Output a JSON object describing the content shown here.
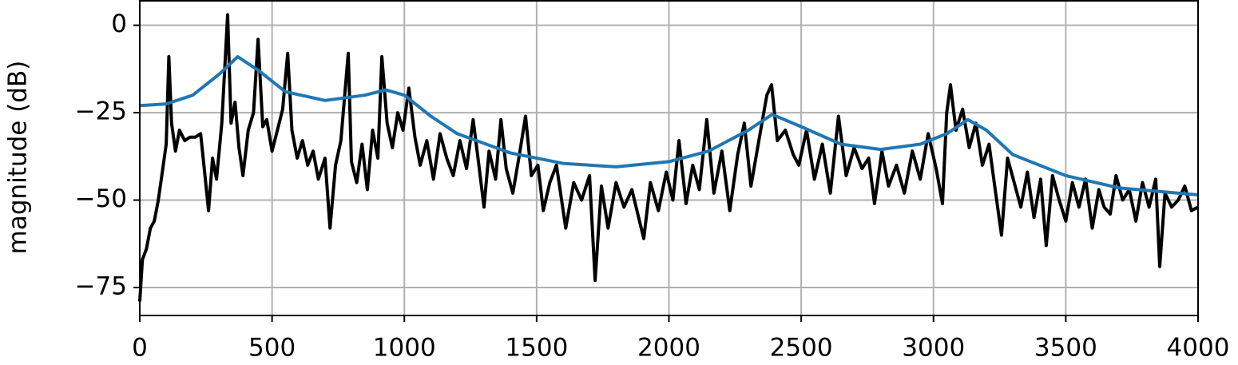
{
  "chart_data": {
    "type": "line",
    "ylabel": "magnitude (dB)",
    "xlim": [
      0,
      4000
    ],
    "ylim": [
      -83,
      7
    ],
    "xticks": [
      0,
      500,
      1000,
      1500,
      2000,
      2500,
      3000,
      3500,
      4000
    ],
    "yticks": [
      -75,
      -50,
      -25,
      0
    ],
    "tick_labels_minus": "−",
    "grid": true,
    "series": [
      {
        "color": "#000000",
        "x": [
          0,
          10,
          25,
          40,
          55,
          70,
          85,
          100,
          110,
          120,
          135,
          150,
          170,
          190,
          210,
          230,
          245,
          260,
          275,
          290,
          310,
          332,
          345,
          360,
          375,
          390,
          410,
          430,
          447,
          465,
          480,
          500,
          520,
          540,
          559,
          575,
          595,
          615,
          635,
          655,
          675,
          700,
          719,
          740,
          760,
          788,
          800,
          820,
          840,
          860,
          880,
          900,
          915,
          935,
          955,
          975,
          995,
          1017,
          1040,
          1060,
          1085,
          1110,
          1135,
          1160,
          1185,
          1210,
          1235,
          1260,
          1280,
          1301,
          1320,
          1345,
          1365,
          1385,
          1410,
          1435,
          1458,
          1480,
          1505,
          1525,
          1550,
          1575,
          1610,
          1640,
          1670,
          1700,
          1721,
          1745,
          1770,
          1800,
          1830,
          1860,
          1905,
          1930,
          1960,
          1990,
          2015,
          2038,
          2065,
          2090,
          2115,
          2143,
          2170,
          2200,
          2230,
          2260,
          2285,
          2310,
          2340,
          2370,
          2388,
          2410,
          2440,
          2470,
          2491,
          2520,
          2550,
          2580,
          2610,
          2641,
          2670,
          2700,
          2730,
          2755,
          2777,
          2805,
          2830,
          2860,
          2890,
          2920,
          2950,
          2980,
          3010,
          3034,
          3050,
          3064,
          3085,
          3110,
          3135,
          3160,
          3185,
          3210,
          3235,
          3257,
          3280,
          3305,
          3330,
          3355,
          3380,
          3405,
          3426,
          3450,
          3475,
          3500,
          3525,
          3550,
          3575,
          3600,
          3625,
          3645,
          3668,
          3690,
          3715,
          3740,
          3765,
          3790,
          3815,
          3840,
          3855,
          3875,
          3900,
          3925,
          3950,
          3975,
          4000
        ],
        "values": [
          -79,
          -67,
          -64,
          -58,
          -56,
          -50,
          -42,
          -34,
          -9,
          -28,
          -36,
          -30,
          -33,
          -32,
          -32,
          -31,
          -42,
          -53,
          -38,
          -44,
          -28,
          3,
          -28,
          -22,
          -35,
          -43,
          -30,
          -25,
          -4,
          -29,
          -27,
          -36,
          -30,
          -24,
          -8,
          -30,
          -38,
          -33,
          -40,
          -36,
          -44,
          -38,
          -58,
          -40,
          -33,
          -8,
          -39,
          -45,
          -34,
          -47,
          -30,
          -38,
          -9,
          -28,
          -35,
          -25,
          -30,
          -18,
          -32,
          -40,
          -33,
          -44,
          -31,
          -38,
          -43,
          -33,
          -41,
          -27,
          -39,
          -52,
          -36,
          -44,
          -27,
          -41,
          -48,
          -37,
          -26,
          -43,
          -40,
          -53,
          -45,
          -40,
          -58,
          -45,
          -50,
          -43,
          -73,
          -46,
          -58,
          -45,
          -52,
          -47,
          -61,
          -45,
          -53,
          -42,
          -50,
          -33,
          -51,
          -40,
          -47,
          -27,
          -48,
          -36,
          -53,
          -37,
          -28,
          -46,
          -33,
          -20,
          -17,
          -33,
          -30,
          -37,
          -40,
          -30,
          -44,
          -34,
          -48,
          -26,
          -43,
          -35,
          -41,
          -38,
          -51,
          -36,
          -46,
          -40,
          -48,
          -36,
          -44,
          -31,
          -41,
          -51,
          -25,
          -17,
          -30,
          -24,
          -35,
          -28,
          -40,
          -34,
          -48,
          -60,
          -38,
          -45,
          -52,
          -42,
          -55,
          -44,
          -63,
          -43,
          -50,
          -56,
          -45,
          -52,
          -44,
          -58,
          -47,
          -52,
          -54,
          -43,
          -50,
          -47,
          -56,
          -45,
          -52,
          -44,
          -69,
          -48,
          -52,
          -50,
          -46,
          -53,
          -52
        ]
      },
      {
        "color": "#1f77b4",
        "x": [
          0,
          100,
          200,
          300,
          370,
          450,
          550,
          700,
          850,
          930,
          1000,
          1100,
          1200,
          1400,
          1600,
          1800,
          2000,
          2150,
          2300,
          2390,
          2500,
          2650,
          2800,
          2950,
          3050,
          3130,
          3200,
          3300,
          3500,
          3700,
          4000
        ],
        "values": [
          -23,
          -22.5,
          -20,
          -14,
          -9,
          -13,
          -19,
          -21.5,
          -20,
          -18.5,
          -20,
          -26,
          -31,
          -36.5,
          -39.5,
          -40.5,
          -39,
          -36,
          -30,
          -25.5,
          -29,
          -34,
          -35.5,
          -34,
          -31,
          -27,
          -30,
          -37,
          -43,
          -46.5,
          -48.5
        ]
      }
    ]
  }
}
